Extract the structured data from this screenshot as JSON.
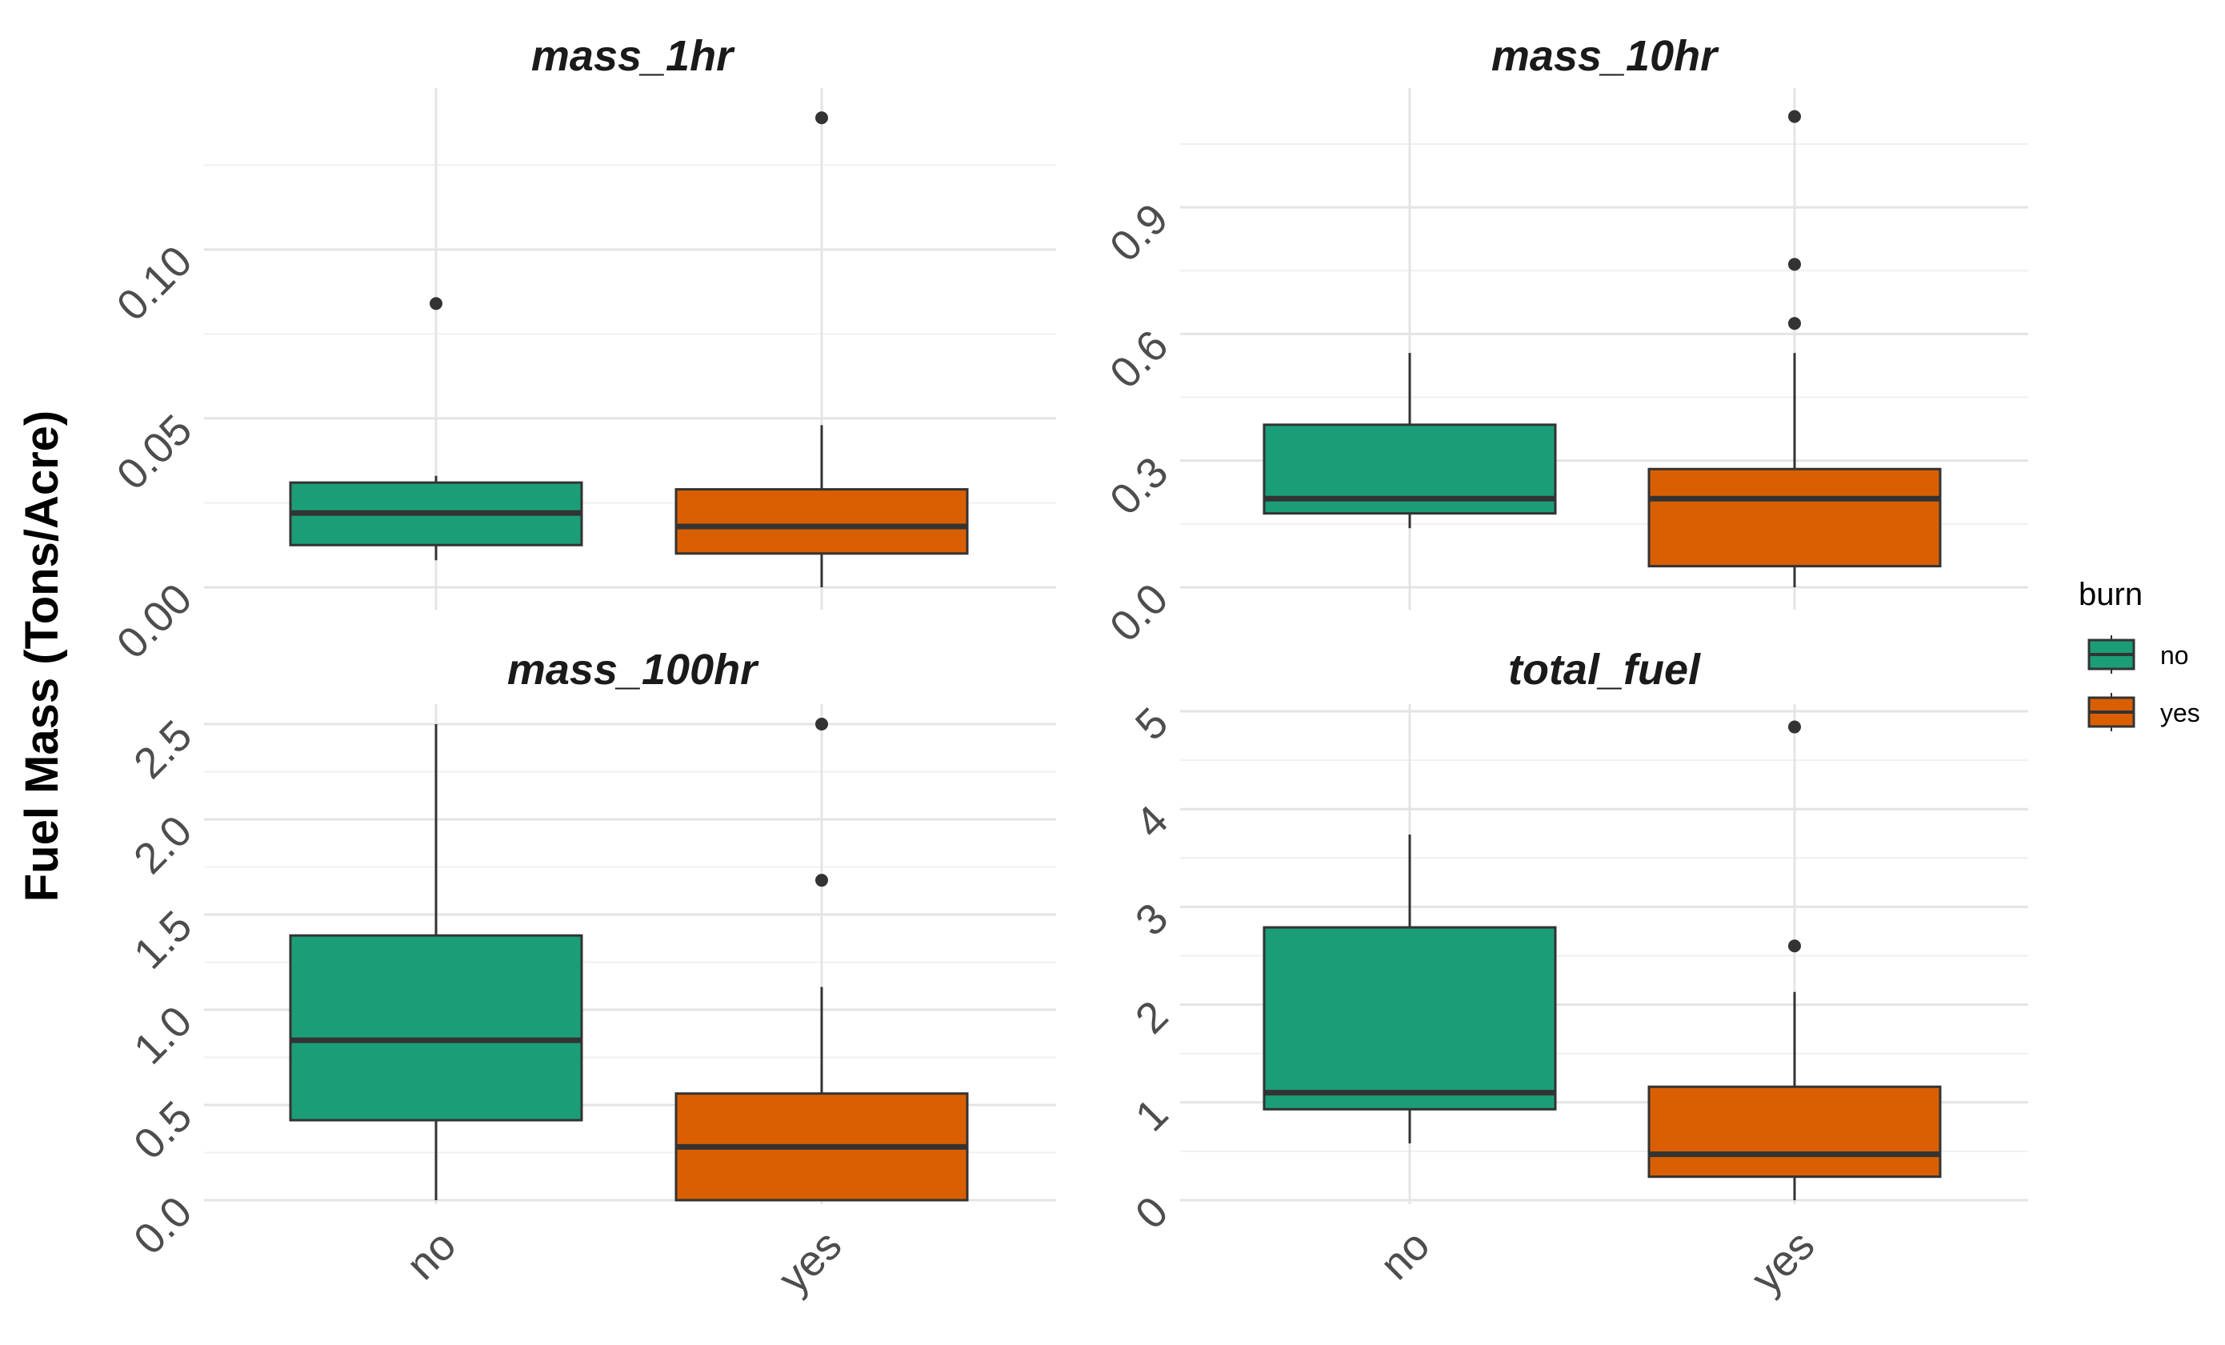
{
  "chart_data": {
    "type": "boxplot",
    "ylabel": "Fuel Mass (Tons/Acre)",
    "categories": [
      "no",
      "yes"
    ],
    "colors": {
      "no": "#1b9e77",
      "yes": "#d95f02"
    },
    "legend": {
      "title": "burn",
      "entries": [
        "no",
        "yes"
      ],
      "placement": "right"
    },
    "grid": true,
    "panels": [
      {
        "title": "mass_1hr",
        "ylim": [
          0.0,
          0.14
        ],
        "yticks": [
          0.0,
          0.05,
          0.1
        ],
        "ytick_labels": [
          "0.00",
          "0.05",
          "0.10"
        ],
        "boxes": [
          {
            "group": "no",
            "whisker_low": 0.008,
            "q1": 0.0125,
            "median": 0.022,
            "q3": 0.031,
            "whisker_high": 0.033,
            "outliers": [
              0.084
            ]
          },
          {
            "group": "yes",
            "whisker_low": 0.0,
            "q1": 0.01,
            "median": 0.018,
            "q3": 0.029,
            "whisker_high": 0.048,
            "outliers": [
              0.139
            ]
          }
        ]
      },
      {
        "title": "mass_10hr",
        "ylim": [
          0.0,
          1.12
        ],
        "yticks": [
          0.0,
          0.3,
          0.6,
          0.9
        ],
        "ytick_labels": [
          "0.0",
          "0.3",
          "0.6",
          "0.9"
        ],
        "boxes": [
          {
            "group": "no",
            "whisker_low": 0.14,
            "q1": 0.175,
            "median": 0.21,
            "q3": 0.385,
            "whisker_high": 0.555,
            "outliers": []
          },
          {
            "group": "yes",
            "whisker_low": 0.0,
            "q1": 0.05,
            "median": 0.21,
            "q3": 0.28,
            "whisker_high": 0.555,
            "outliers": [
              0.625,
              0.765,
              1.115
            ]
          }
        ]
      },
      {
        "title": "mass_100hr",
        "ylim": [
          0.0,
          2.5
        ],
        "yticks": [
          0.0,
          0.5,
          1.0,
          1.5,
          2.0,
          2.5
        ],
        "ytick_labels": [
          "0.0",
          "0.5",
          "1.0",
          "1.5",
          "2.0",
          "2.5"
        ],
        "boxes": [
          {
            "group": "no",
            "whisker_low": 0.0,
            "q1": 0.42,
            "median": 0.84,
            "q3": 1.39,
            "whisker_high": 2.5,
            "outliers": []
          },
          {
            "group": "yes",
            "whisker_low": 0.0,
            "q1": 0.0,
            "median": 0.28,
            "q3": 0.56,
            "whisker_high": 1.12,
            "outliers": [
              1.68,
              2.5
            ]
          }
        ]
      },
      {
        "title": "total_fuel",
        "ylim": [
          0.0,
          5.0
        ],
        "yticks": [
          0,
          1,
          2,
          3,
          4,
          5
        ],
        "ytick_labels": [
          "0",
          "1",
          "2",
          "3",
          "4",
          "5"
        ],
        "boxes": [
          {
            "group": "no",
            "whisker_low": 0.58,
            "q1": 0.93,
            "median": 1.1,
            "q3": 2.79,
            "whisker_high": 3.74,
            "outliers": []
          },
          {
            "group": "yes",
            "whisker_low": 0.0,
            "q1": 0.24,
            "median": 0.47,
            "q3": 1.16,
            "whisker_high": 2.13,
            "outliers": [
              2.6,
              4.84
            ]
          }
        ]
      }
    ]
  }
}
